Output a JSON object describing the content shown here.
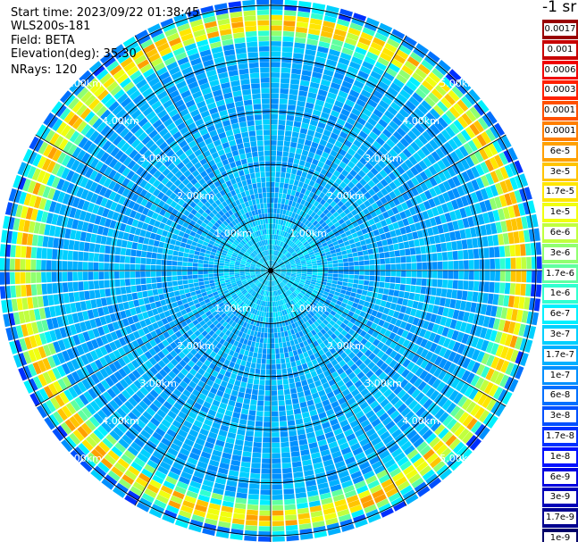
{
  "info": {
    "start_time": "Start time: 2023/09/22 01:38:45",
    "instrument": "WLS200s-181",
    "field": "Field: BETA",
    "elevation": "Elevation(deg): 35.30",
    "nrays": "NRays: 120"
  },
  "colorbar": {
    "title": "-1 sr",
    "labels": [
      "0.0017",
      "0.001",
      "0.0006",
      "0.0003",
      "0.00017",
      "0.0001",
      "6e-5",
      "3e-5",
      "1.7e-5",
      "1e-5",
      "6e-6",
      "3e-6",
      "1.7e-6",
      "1e-6",
      "6e-7",
      "3e-7",
      "1.7e-7",
      "1e-7",
      "6e-8",
      "3e-8",
      "1.7e-8",
      "1e-8",
      "6e-9",
      "3e-9",
      "1.7e-9",
      "1e-9"
    ],
    "colors": [
      "#990000",
      "#c80000",
      "#f00000",
      "#ff2000",
      "#ff5000",
      "#ff7f00",
      "#ffa000",
      "#ffc400",
      "#ffe600",
      "#f0ff10",
      "#c0ff3f",
      "#90ff70",
      "#60ffa0",
      "#30ffd0",
      "#00f0ff",
      "#00d0ff",
      "#00b0ff",
      "#0090ff",
      "#0070ff",
      "#0050ff",
      "#0030ff",
      "#0010ff",
      "#0000e0",
      "#0000b8",
      "#000090",
      "#000068"
    ]
  },
  "chart_data": {
    "type": "heatmap",
    "projection": "polar (PPI scan)",
    "field": "BETA",
    "units": "-1 sr",
    "elevation_deg": 35.3,
    "n_rays": 120,
    "range_rings": [
      "1.00km",
      "2.00km",
      "3.00km",
      "4.00km",
      "5.00km"
    ],
    "max_range_km": 5.1,
    "scale": "log",
    "color_range": [
      1e-09,
      0.0017
    ],
    "typical_values": {
      "near_field_0_to_1km": "3e-7",
      "mid_field_1_to_4.5km": "1.7e-7",
      "ring_4.6_to_4.8km": "1.7e-5",
      "edge_beyond_5km": "1e-7"
    },
    "grid": true
  }
}
